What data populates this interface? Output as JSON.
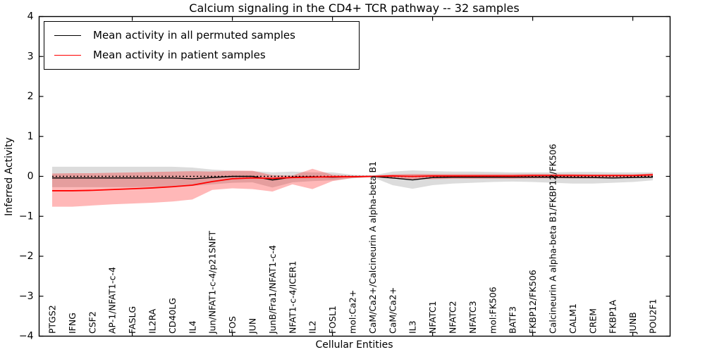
{
  "chart_data": {
    "type": "line",
    "title": "Calcium signaling in the CD4+ TCR pathway -- 32 samples",
    "xlabel": "Cellular Entities",
    "ylabel": "Inferred Activity",
    "ylim": [
      -4,
      4
    ],
    "yticks": [
      -4,
      -3,
      -2,
      -1,
      0,
      1,
      2,
      3,
      4
    ],
    "xtick_positions": [
      4,
      9,
      14,
      19,
      24,
      29
    ],
    "grid": false,
    "legend_position": "upper left",
    "zero_line": {
      "y": 0,
      "style": "dotted",
      "color": "#000000"
    },
    "categories": [
      "PTGS2",
      "IFNG",
      "CSF2",
      "AP-1/NFAT1-c-4",
      "FASLG",
      "IL2RA",
      "CD40LG",
      "IL4",
      "Jun/NFAT1-c-4/p21SNFT",
      "FOS",
      "JUN",
      "JunB/Fra1/NFAT1-c-4",
      "NFAT1-c-4/ICER1",
      "IL2",
      "FOSL1",
      "mol:Ca2+",
      "CaM/Ca2+/Calcineurin A alpha-beta B1",
      "CaM/Ca2+",
      "IL3",
      "NFATC1",
      "NFATC2",
      "NFATC3",
      "mol:FK506",
      "BATF3",
      "FKBP12/FK506",
      "Calcineurin A alpha-beta B1/FKBP12/FK506",
      "CALM1",
      "CREM",
      "FKBP1A",
      "JUNB",
      "POU2F1"
    ],
    "series": [
      {
        "name": "Mean activity in all permuted samples",
        "color": "#000000",
        "values": [
          -0.04,
          -0.04,
          -0.04,
          -0.04,
          -0.04,
          -0.04,
          -0.04,
          -0.06,
          -0.03,
          0.0,
          0.0,
          -0.09,
          -0.02,
          -0.01,
          -0.02,
          -0.01,
          0.0,
          -0.04,
          -0.09,
          -0.03,
          -0.02,
          -0.02,
          -0.02,
          -0.02,
          -0.02,
          -0.02,
          -0.03,
          -0.03,
          -0.04,
          -0.03,
          -0.02
        ]
      },
      {
        "name": "Mean activity in patient samples",
        "color": "#ff0000",
        "values": [
          -0.36,
          -0.36,
          -0.35,
          -0.33,
          -0.31,
          -0.29,
          -0.26,
          -0.22,
          -0.13,
          -0.06,
          -0.04,
          -0.05,
          -0.03,
          -0.02,
          -0.01,
          -0.01,
          0.0,
          0.01,
          0.0,
          0.01,
          0.01,
          0.01,
          0.01,
          0.01,
          0.02,
          0.02,
          0.02,
          0.02,
          0.02,
          0.02,
          0.04
        ]
      }
    ],
    "bands": [
      {
        "name": "permuted-samples-confidence-band",
        "color": "#808080",
        "opacity": 0.28,
        "upper": [
          0.24,
          0.24,
          0.24,
          0.24,
          0.24,
          0.24,
          0.24,
          0.22,
          0.17,
          0.14,
          0.13,
          0.1,
          0.12,
          0.1,
          0.1,
          0.04,
          0.02,
          0.12,
          0.15,
          0.13,
          0.12,
          0.12,
          0.11,
          0.1,
          0.1,
          0.1,
          0.11,
          0.11,
          0.1,
          0.1,
          0.1
        ],
        "lower": [
          -0.27,
          -0.27,
          -0.27,
          -0.27,
          -0.27,
          -0.26,
          -0.26,
          -0.24,
          -0.2,
          -0.16,
          -0.15,
          -0.28,
          -0.15,
          -0.12,
          -0.1,
          -0.05,
          -0.02,
          -0.22,
          -0.31,
          -0.22,
          -0.18,
          -0.16,
          -0.14,
          -0.13,
          -0.14,
          -0.16,
          -0.18,
          -0.18,
          -0.16,
          -0.14,
          -0.1
        ]
      },
      {
        "name": "patient-samples-confidence-band",
        "color": "#ff0000",
        "opacity": 0.28,
        "upper": [
          0.07,
          0.08,
          0.08,
          0.09,
          0.1,
          0.11,
          0.12,
          0.13,
          0.12,
          0.14,
          0.14,
          0.03,
          0.02,
          0.19,
          0.04,
          0.02,
          0.01,
          0.05,
          0.06,
          0.06,
          0.06,
          0.06,
          0.06,
          0.06,
          0.06,
          0.06,
          0.06,
          0.05,
          0.05,
          0.05,
          0.07
        ],
        "lower": [
          -0.76,
          -0.76,
          -0.73,
          -0.7,
          -0.68,
          -0.66,
          -0.63,
          -0.58,
          -0.34,
          -0.3,
          -0.32,
          -0.38,
          -0.2,
          -0.32,
          -0.12,
          -0.04,
          -0.02,
          -0.06,
          -0.07,
          -0.07,
          -0.06,
          -0.06,
          -0.06,
          -0.06,
          -0.05,
          -0.05,
          -0.05,
          -0.05,
          -0.05,
          -0.04,
          -0.03
        ]
      }
    ]
  },
  "legend": {
    "items": [
      {
        "label": "Mean activity in all permuted samples",
        "color": "#000000"
      },
      {
        "label": "Mean activity in patient samples",
        "color": "#ff0000"
      }
    ]
  }
}
